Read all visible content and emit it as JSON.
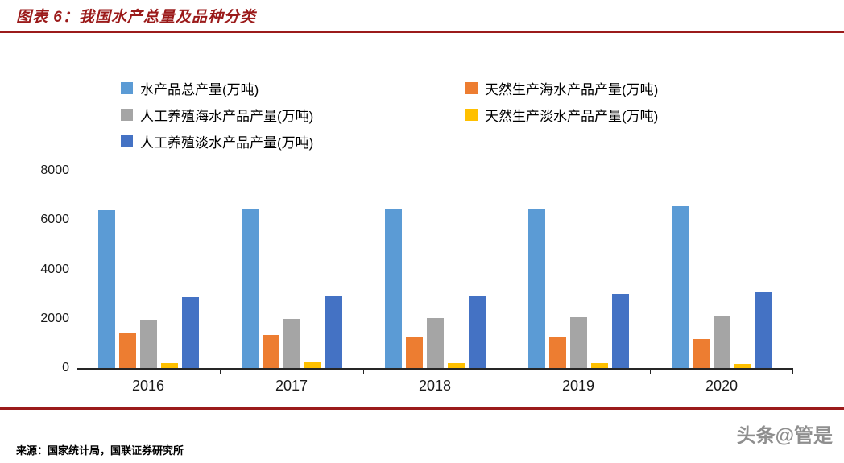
{
  "header": {
    "title": "图表 6：我国水产总量及品种分类"
  },
  "colors": {
    "accent_red": "#9B1B1B",
    "axis": "#262626",
    "watermark_gray": "#8F8F8F"
  },
  "chart_data": {
    "type": "bar",
    "title": "图表 6：我国水产总量及品种分类",
    "categories": [
      "2016",
      "2017",
      "2018",
      "2019",
      "2020"
    ],
    "series": [
      {
        "name": "水产品总产量(万吨)",
        "color": "#5B9BD5",
        "values": [
          6400,
          6450,
          6460,
          6480,
          6550
        ]
      },
      {
        "name": "天然生产海水产品产量(万吨)",
        "color": "#ED7D31",
        "values": [
          1410,
          1340,
          1280,
          1230,
          1180
        ]
      },
      {
        "name": "人工养殖海水产品产量(万吨)",
        "color": "#A5A5A5",
        "values": [
          1920,
          2000,
          2030,
          2060,
          2130
        ]
      },
      {
        "name": "天然生产淡水产品产量(万吨)",
        "color": "#FFC000",
        "values": [
          200,
          230,
          200,
          200,
          150
        ]
      },
      {
        "name": "人工养殖淡水产品产量(万吨)",
        "color": "#4472C4",
        "values": [
          2870,
          2910,
          2950,
          3010,
          3080
        ]
      }
    ],
    "xlabel": "",
    "ylabel": "",
    "ylim": [
      0,
      8000
    ],
    "yticks": [
      0,
      2000,
      4000,
      6000,
      8000
    ],
    "grid": false,
    "legend_position": "top"
  },
  "footer": {
    "source": "来源：国家统计局，国联证券研究所",
    "watermark": "头条@管是"
  }
}
